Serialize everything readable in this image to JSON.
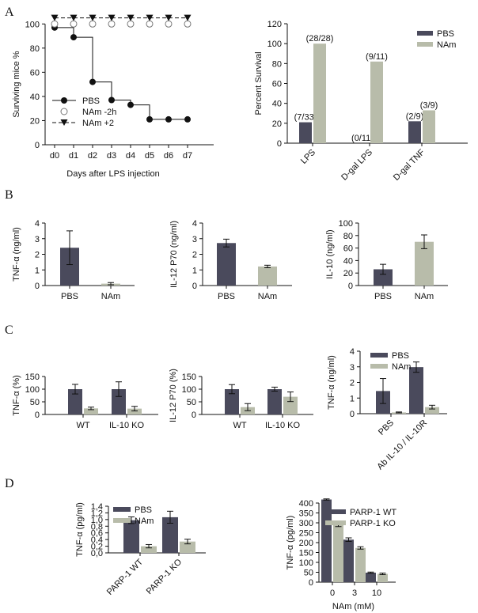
{
  "panel_letters": [
    "A",
    "B",
    "C",
    "D"
  ],
  "colors": {
    "dark": "#4a4a5c",
    "light": "#b8bcaa",
    "axis": "#111111"
  },
  "chart_data": [
    {
      "id": "A1",
      "type": "line",
      "xlabel": "Days after LPS injection",
      "ylabel": "Surviving mice %",
      "categories": [
        "d0",
        "d1",
        "d2",
        "d3",
        "d4",
        "d5",
        "d6",
        "d7"
      ],
      "ylim": [
        0,
        100
      ],
      "yticks": [
        "0",
        "20",
        "40",
        "60",
        "80",
        "100"
      ],
      "legend_position": "bottom-left",
      "series": [
        {
          "name": "PBS",
          "values": [
            97,
            89,
            52,
            37,
            33,
            21,
            21,
            21
          ],
          "marker": "filled-circle",
          "style": "solid-step"
        },
        {
          "name": "NAm -2h",
          "values": [
            100,
            100,
            100,
            100,
            100,
            100,
            100,
            100
          ],
          "marker": "open-circle",
          "style": "none"
        },
        {
          "name": "NAm +2",
          "values": [
            105,
            105,
            105,
            105,
            105,
            105,
            105,
            105
          ],
          "marker": "filled-triangle-down",
          "style": "dashed"
        }
      ]
    },
    {
      "id": "A2",
      "type": "bar",
      "xlabel": "",
      "ylabel": "Percent Survival",
      "categories": [
        "LPS",
        "D-gal LPS",
        "D-gal TNF"
      ],
      "ylim": [
        0,
        120
      ],
      "yticks": [
        "0",
        "20",
        "40",
        "60",
        "80",
        "100",
        "120"
      ],
      "legend_position": "top-right",
      "series": [
        {
          "name": "PBS",
          "values": [
            21,
            0,
            22
          ],
          "labels": [
            "(7/33)",
            "(0/11)",
            "(2/9)"
          ]
        },
        {
          "name": "NAm",
          "values": [
            100,
            82,
            33
          ],
          "labels": [
            "(28/28)",
            "(9/11)",
            "(3/9)"
          ]
        }
      ]
    },
    {
      "id": "B1",
      "type": "bar",
      "xlabel": "",
      "ylabel": "TNF-α (ng/ml)",
      "categories": [
        "PBS",
        "NAm"
      ],
      "ylim": [
        0,
        4
      ],
      "yticks": [
        "0",
        "1",
        "2",
        "3",
        "4"
      ],
      "values": [
        2.42,
        0.12
      ],
      "errors": [
        1.08,
        0.07
      ]
    },
    {
      "id": "B2",
      "type": "bar",
      "xlabel": "",
      "ylabel": "IL-12 P70 (ng/ml)",
      "categories": [
        "PBS",
        "NAm"
      ],
      "ylim": [
        0,
        4
      ],
      "yticks": [
        "0",
        "1",
        "2",
        "3",
        "4"
      ],
      "values": [
        2.72,
        1.22
      ],
      "errors": [
        0.25,
        0.08
      ]
    },
    {
      "id": "B3",
      "type": "bar",
      "xlabel": "",
      "ylabel": "IL-10 (ng/ml)",
      "categories": [
        "PBS",
        "NAm"
      ],
      "ylim": [
        0,
        100
      ],
      "yticks": [
        "0",
        "20",
        "40",
        "60",
        "80",
        "100"
      ],
      "values": [
        26,
        70
      ],
      "errors": [
        8,
        11
      ]
    },
    {
      "id": "C1",
      "type": "bar",
      "xlabel": "",
      "ylabel": "TNF-α (%)",
      "categories": [
        "WT",
        "IL-10 KO"
      ],
      "ylim": [
        0,
        150
      ],
      "yticks": [
        "0",
        "50",
        "100",
        "150"
      ],
      "series": [
        {
          "name": "PBS",
          "values": [
            100,
            100
          ],
          "errors": [
            19,
            29
          ]
        },
        {
          "name": "NAm",
          "values": [
            24,
            23
          ],
          "errors": [
            5,
            9
          ]
        }
      ]
    },
    {
      "id": "C2",
      "type": "bar",
      "xlabel": "",
      "ylabel": "IL-12 P70 (%)",
      "categories": [
        "WT",
        "IL-10 KO"
      ],
      "ylim": [
        0,
        150
      ],
      "yticks": [
        "0",
        "50",
        "100",
        "150"
      ],
      "series": [
        {
          "name": "PBS",
          "values": [
            100,
            100
          ],
          "errors": [
            18,
            8
          ]
        },
        {
          "name": "NAm",
          "values": [
            29,
            70
          ],
          "errors": [
            14,
            19
          ]
        }
      ]
    },
    {
      "id": "C3",
      "type": "bar",
      "xlabel": "",
      "ylabel": "TNF-α (ng/ml)",
      "categories": [
        "PBS",
        "Ab IL-10 / IL-10R"
      ],
      "ylim": [
        0,
        4
      ],
      "yticks": [
        "0",
        "1",
        "2",
        "3",
        "4"
      ],
      "legend_position": "top-left",
      "series": [
        {
          "name": "PBS",
          "values": [
            1.45,
            2.98
          ],
          "errors": [
            0.8,
            0.33
          ]
        },
        {
          "name": "NAm",
          "values": [
            0.08,
            0.42
          ],
          "errors": [
            0.03,
            0.12
          ]
        }
      ]
    },
    {
      "id": "D1",
      "type": "bar",
      "xlabel": "",
      "ylabel": "TNF-α (pg/ml)",
      "categories": [
        "PARP-1 WT",
        "PARP-1 KO"
      ],
      "ylim": [
        0,
        1.4
      ],
      "yticks": [
        "0,0",
        "0,2",
        "0,4",
        "0,6",
        "0,8",
        "1,0",
        "1,2",
        "1,4"
      ],
      "legend_position": "top-left",
      "series": [
        {
          "name": "PBS",
          "values": [
            0.98,
            1.07
          ],
          "errors": [
            0.1,
            0.18
          ]
        },
        {
          "name": "NAm",
          "values": [
            0.2,
            0.34
          ],
          "errors": [
            0.05,
            0.07
          ]
        }
      ]
    },
    {
      "id": "D2",
      "type": "bar",
      "xlabel": "NAm (mM)",
      "ylabel": "TNF-α (pg/ml)",
      "categories": [
        "0",
        "3",
        "10"
      ],
      "ylim": [
        0,
        400
      ],
      "yticks": [
        "0",
        "50",
        "100",
        "150",
        "200",
        "250",
        "300",
        "350",
        "400"
      ],
      "legend_position": "top-right",
      "series": [
        {
          "name": "PARP-1 WT",
          "values": [
            418,
            215,
            48
          ],
          "errors": [
            3,
            9,
            3
          ]
        },
        {
          "name": "PARP-1 KO",
          "values": [
            293,
            173,
            42
          ],
          "errors": [
            12,
            6,
            4
          ]
        }
      ]
    }
  ]
}
